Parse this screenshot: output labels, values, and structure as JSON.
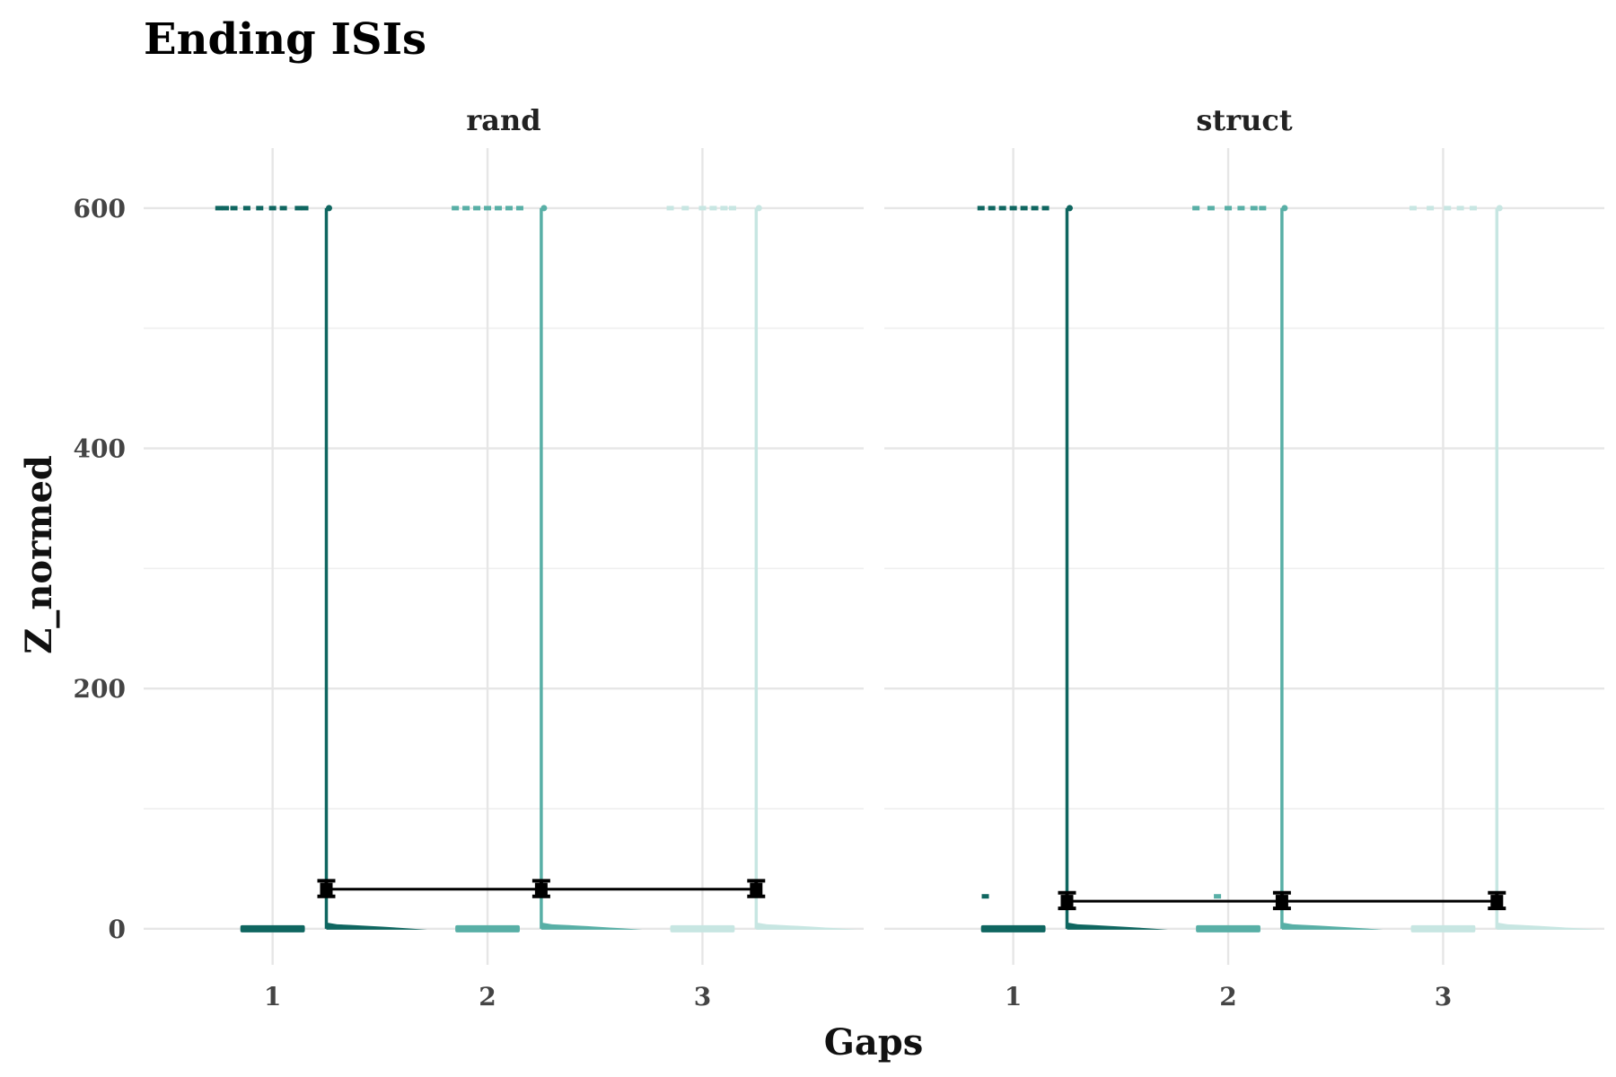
{
  "chart_data": {
    "type": "raincloud",
    "title": "Ending ISIs",
    "xlabel": "Gaps",
    "ylabel": "Z_normed",
    "ylim": [
      -30,
      650
    ],
    "yticks": [
      0,
      200,
      400,
      600
    ],
    "grid": true,
    "legend": "none",
    "categories": [
      "1",
      "2",
      "3"
    ],
    "group_colors": [
      "#0f6660",
      "#58afa6",
      "#c7e6e2"
    ],
    "panels": [
      {
        "name": "rand",
        "series": [
          {
            "gap": "1",
            "max": 600,
            "min": 0,
            "mean": 33,
            "err_low": 27,
            "err_high": 40,
            "points": [
              [
                -0.25,
                600
              ],
              [
                -0.22,
                600
              ],
              [
                -0.18,
                600
              ],
              [
                -0.12,
                600
              ],
              [
                -0.06,
                600
              ],
              [
                0.0,
                600
              ],
              [
                0.05,
                600
              ],
              [
                0.12,
                600
              ],
              [
                0.15,
                600
              ]
            ]
          },
          {
            "gap": "2",
            "max": 600,
            "min": 0,
            "mean": 33,
            "err_low": 27,
            "err_high": 40,
            "points": [
              [
                -0.15,
                600
              ],
              [
                -0.1,
                600
              ],
              [
                -0.05,
                600
              ],
              [
                0.0,
                600
              ],
              [
                0.05,
                600
              ],
              [
                0.1,
                600
              ],
              [
                0.15,
                600
              ]
            ]
          },
          {
            "gap": "3",
            "max": 600,
            "min": 0,
            "mean": 33,
            "err_low": 27,
            "err_high": 40,
            "points": [
              [
                -0.15,
                600
              ],
              [
                -0.08,
                600
              ],
              [
                0.0,
                600
              ],
              [
                0.05,
                600
              ],
              [
                0.1,
                600
              ],
              [
                0.14,
                600
              ]
            ]
          }
        ]
      },
      {
        "name": "struct",
        "series": [
          {
            "gap": "1",
            "max": 600,
            "min": 0,
            "mean": 23,
            "err_low": 17,
            "err_high": 30,
            "points": [
              [
                -0.15,
                600
              ],
              [
                -0.1,
                600
              ],
              [
                -0.05,
                600
              ],
              [
                0.0,
                600
              ],
              [
                0.05,
                600
              ],
              [
                0.1,
                600
              ],
              [
                0.15,
                600
              ],
              [
                -0.13,
                27
              ]
            ]
          },
          {
            "gap": "2",
            "max": 600,
            "min": 0,
            "mean": 23,
            "err_low": 17,
            "err_high": 30,
            "points": [
              [
                -0.15,
                600
              ],
              [
                -0.08,
                600
              ],
              [
                0.0,
                600
              ],
              [
                0.06,
                600
              ],
              [
                0.12,
                600
              ],
              [
                0.16,
                600
              ],
              [
                -0.05,
                27
              ]
            ]
          },
          {
            "gap": "3",
            "max": 600,
            "min": 0,
            "mean": 23,
            "err_low": 17,
            "err_high": 30,
            "points": [
              [
                -0.14,
                600
              ],
              [
                -0.06,
                600
              ],
              [
                0.02,
                600
              ],
              [
                0.08,
                600
              ],
              [
                0.14,
                600
              ]
            ]
          }
        ]
      }
    ]
  }
}
